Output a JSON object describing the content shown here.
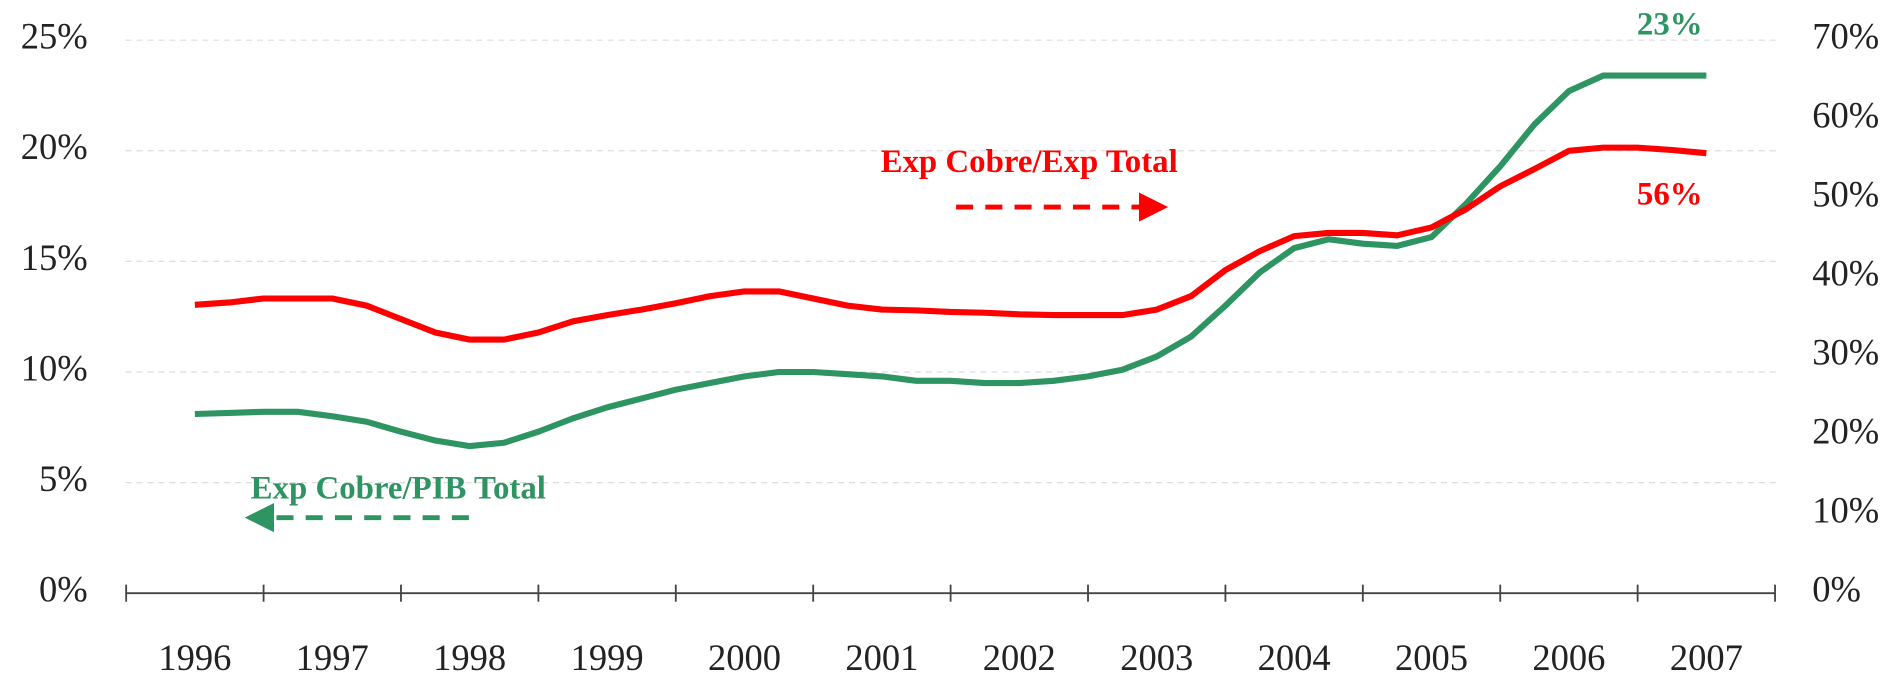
{
  "chart_data": {
    "type": "line",
    "categories": [
      "1996",
      null,
      null,
      null,
      "1997",
      null,
      null,
      null,
      "1998",
      null,
      null,
      null,
      "1999",
      null,
      null,
      null,
      "2000",
      null,
      null,
      null,
      "2001",
      null,
      null,
      null,
      "2002",
      null,
      null,
      null,
      "2003",
      null,
      null,
      null,
      "2004",
      null,
      null,
      null,
      "2005",
      null,
      null,
      null,
      "2006",
      null,
      null,
      null,
      "2007"
    ],
    "series": [
      {
        "name": "Exp Cobre/PIB Total",
        "color": "#2e9462",
        "axis": "y",
        "values": [
          8.1,
          8.15,
          8.2,
          8.2,
          8.0,
          7.75,
          7.3,
          6.9,
          6.65,
          6.8,
          7.3,
          7.9,
          8.4,
          8.8,
          9.2,
          9.5,
          9.8,
          10.0,
          10.0,
          9.9,
          9.8,
          9.6,
          9.6,
          9.5,
          9.5,
          9.6,
          9.8,
          10.1,
          10.7,
          11.6,
          13.0,
          14.5,
          15.6,
          16.0,
          15.8,
          15.7,
          16.1,
          17.6,
          19.3,
          21.2,
          22.7,
          23.4,
          23.4,
          23.4,
          23.4
        ],
        "value_labels": [
          null,
          null,
          null,
          null,
          null,
          null,
          null,
          null,
          null,
          null,
          null,
          null,
          null,
          null,
          null,
          null,
          null,
          null,
          null,
          null,
          null,
          null,
          null,
          null,
          null,
          null,
          null,
          null,
          null,
          null,
          null,
          null,
          null,
          null,
          null,
          null,
          null,
          null,
          null,
          null,
          null,
          null,
          null,
          null,
          "23%"
        ]
      },
      {
        "name": "Exp Cobre/Exp Total",
        "color": "#ff0000",
        "axis": "y2",
        "values": [
          36.5,
          36.8,
          37.3,
          37.3,
          37.3,
          36.4,
          34.7,
          33.0,
          32.1,
          32.1,
          33.0,
          34.4,
          35.2,
          35.9,
          36.7,
          37.6,
          38.2,
          38.2,
          37.3,
          36.4,
          35.9,
          35.8,
          35.6,
          35.5,
          35.3,
          35.2,
          35.2,
          35.2,
          35.9,
          37.6,
          40.9,
          43.3,
          45.2,
          45.6,
          45.6,
          45.3,
          46.3,
          48.6,
          51.5,
          53.7,
          56.0,
          56.4,
          56.4,
          56.1,
          55.7
        ],
        "value_labels": [
          null,
          null,
          null,
          null,
          null,
          null,
          null,
          null,
          null,
          null,
          null,
          null,
          null,
          null,
          null,
          null,
          null,
          null,
          null,
          null,
          null,
          null,
          null,
          null,
          null,
          null,
          null,
          null,
          null,
          null,
          null,
          null,
          null,
          null,
          null,
          null,
          null,
          null,
          null,
          null,
          null,
          null,
          null,
          null,
          "56%"
        ]
      }
    ],
    "ylim": [
      0,
      25
    ],
    "yticks": [
      {
        "value": 0,
        "label": "0%"
      },
      {
        "value": 5,
        "label": "5%"
      },
      {
        "value": 10,
        "label": "10%"
      },
      {
        "value": 15,
        "label": "15%"
      },
      {
        "value": 20,
        "label": "20%"
      },
      {
        "value": 25,
        "label": "25%"
      }
    ],
    "y2lim": [
      0,
      70
    ],
    "y2ticks": [
      {
        "value": 0,
        "label": "0%"
      },
      {
        "value": 10,
        "label": "10%"
      },
      {
        "value": 20,
        "label": "20%"
      },
      {
        "value": 30,
        "label": "30%"
      },
      {
        "value": 40,
        "label": "40%"
      },
      {
        "value": 50,
        "label": "50%"
      },
      {
        "value": 60,
        "label": "60%"
      },
      {
        "value": 70,
        "label": "70%"
      }
    ],
    "grid": true
  }
}
